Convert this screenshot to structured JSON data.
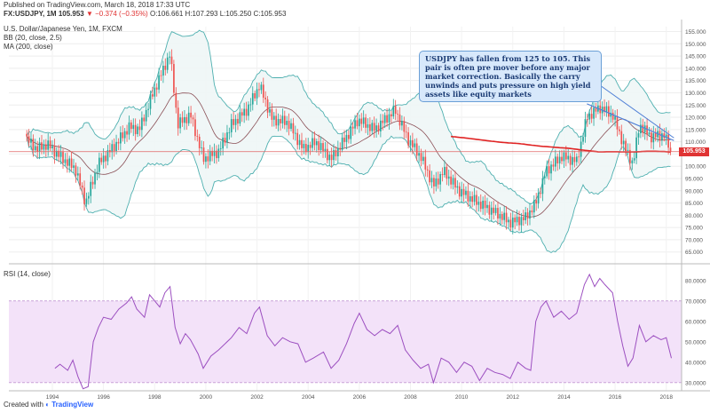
{
  "header": {
    "published": "Published on TradingView.com, March 18, 2018 17:33 UTC",
    "symbol": "FX:USDJPY, 1M",
    "last": "105.953",
    "change": "−0.374 (−0.35%)",
    "ohlc": "O:106.661 H:107.293 L:105.250 C:105.953"
  },
  "indicators": {
    "title": "U.S. Dollar/Japanese Yen, 1M, FXCM",
    "bb": "BB (20, close, 2.5)",
    "ma": "MA (200, close)",
    "rsi": "RSI (14, close)"
  },
  "annotation": "USDJPY has fallen from 125 to 105. This pair is often  pre mover before any major market correction. Basically the carry unwinds and puts pressure on high yield assets like equity markets",
  "price_badge": "105.953",
  "footer": {
    "created_with": "Created with",
    "brand": "TradingView"
  },
  "colors": {
    "up": "#26a69a",
    "down": "#ef5350",
    "bb": "#4fb0b0",
    "ma": "#e02424",
    "rsi": "#9c4fc0",
    "rsi_band": "#f3e2f9"
  },
  "chart_data": [
    {
      "type": "candlestick",
      "title": "U.S. Dollar/Japanese Yen, 1M, FXCM",
      "x_ticks": [
        "1994",
        "1996",
        "1998",
        "2000",
        "2002",
        "2004",
        "2006",
        "2008",
        "2010",
        "2012",
        "2014",
        "2016",
        "2018"
      ],
      "y_ticks": [
        "65.000",
        "70.000",
        "75.000",
        "80.000",
        "85.000",
        "90.000",
        "95.000",
        "100.000",
        "105.000",
        "110.000",
        "115.000",
        "120.000",
        "125.000",
        "130.000",
        "135.000",
        "140.000",
        "145.000",
        "150.000",
        "155.000"
      ],
      "ylim": [
        62,
        157
      ],
      "xlim": [
        1992.3,
        2018.6
      ],
      "close_anchors": [
        [
          1993.0,
          111
        ],
        [
          1993.4,
          107
        ],
        [
          1993.8,
          109
        ],
        [
          1994.3,
          104
        ],
        [
          1994.9,
          99
        ],
        [
          1995.3,
          85
        ],
        [
          1995.8,
          101
        ],
        [
          1996.4,
          108
        ],
        [
          1997.0,
          116
        ],
        [
          1997.4,
          115
        ],
        [
          1997.9,
          129
        ],
        [
          1998.6,
          146
        ],
        [
          1998.9,
          117
        ],
        [
          1999.4,
          121
        ],
        [
          1999.9,
          103
        ],
        [
          2000.5,
          106
        ],
        [
          2001.0,
          117
        ],
        [
          2001.6,
          123
        ],
        [
          2002.1,
          133
        ],
        [
          2002.6,
          119
        ],
        [
          2003.2,
          118
        ],
        [
          2003.8,
          107
        ],
        [
          2004.3,
          110
        ],
        [
          2004.9,
          103
        ],
        [
          2005.5,
          112
        ],
        [
          2005.95,
          119
        ],
        [
          2006.6,
          115
        ],
        [
          2007.4,
          123
        ],
        [
          2007.9,
          111
        ],
        [
          2008.4,
          104
        ],
        [
          2008.9,
          92
        ],
        [
          2009.3,
          98
        ],
        [
          2009.9,
          90
        ],
        [
          2010.5,
          86
        ],
        [
          2011.0,
          83
        ],
        [
          2011.5,
          80
        ],
        [
          2011.9,
          77
        ],
        [
          2012.5,
          79
        ],
        [
          2012.9,
          85
        ],
        [
          2013.3,
          98
        ],
        [
          2013.9,
          104
        ],
        [
          2014.5,
          102
        ],
        [
          2014.9,
          120
        ],
        [
          2015.4,
          124
        ],
        [
          2015.9,
          121
        ],
        [
          2016.4,
          107
        ],
        [
          2016.7,
          101
        ],
        [
          2016.95,
          117
        ],
        [
          2017.4,
          112
        ],
        [
          2017.9,
          113
        ],
        [
          2018.2,
          106
        ]
      ],
      "bollinger": {
        "period": 20,
        "stddev": 2.5
      },
      "moving_average": {
        "period": 200
      },
      "last_price": 105.953,
      "trendline": [
        [
          2014.9,
          125.5
        ],
        [
          2018.3,
          110.5
        ]
      ]
    },
    {
      "type": "line",
      "title": "RSI (14, close)",
      "y_ticks": [
        "30.0000",
        "40.0000",
        "50.0000",
        "60.0000",
        "70.0000",
        "80.0000"
      ],
      "ylim": [
        26,
        86
      ],
      "band": [
        30,
        70
      ],
      "points": [
        [
          1994.1,
          37
        ],
        [
          1994.3,
          39
        ],
        [
          1994.6,
          36
        ],
        [
          1994.8,
          41
        ],
        [
          1995.0,
          33
        ],
        [
          1995.2,
          27
        ],
        [
          1995.4,
          28
        ],
        [
          1995.6,
          50
        ],
        [
          1995.8,
          57
        ],
        [
          1996.0,
          62
        ],
        [
          1996.3,
          61
        ],
        [
          1996.6,
          66
        ],
        [
          1996.9,
          69
        ],
        [
          1997.1,
          72
        ],
        [
          1997.3,
          66
        ],
        [
          1997.6,
          62
        ],
        [
          1997.8,
          73
        ],
        [
          1998.0,
          70
        ],
        [
          1998.2,
          67
        ],
        [
          1998.4,
          74
        ],
        [
          1998.6,
          77
        ],
        [
          1998.8,
          57
        ],
        [
          1999.0,
          49
        ],
        [
          1999.2,
          54
        ],
        [
          1999.4,
          51
        ],
        [
          1999.7,
          44
        ],
        [
          1999.9,
          37
        ],
        [
          2000.2,
          43
        ],
        [
          2000.5,
          46
        ],
        [
          2001.0,
          52
        ],
        [
          2001.3,
          57
        ],
        [
          2001.6,
          54
        ],
        [
          2001.9,
          64
        ],
        [
          2002.1,
          67
        ],
        [
          2002.4,
          53
        ],
        [
          2002.7,
          48
        ],
        [
          2003.0,
          52
        ],
        [
          2003.3,
          50
        ],
        [
          2003.6,
          49
        ],
        [
          2003.9,
          40
        ],
        [
          2004.2,
          42
        ],
        [
          2004.6,
          45
        ],
        [
          2004.9,
          37
        ],
        [
          2005.2,
          41
        ],
        [
          2005.5,
          49
        ],
        [
          2005.8,
          59
        ],
        [
          2006.0,
          64
        ],
        [
          2006.3,
          56
        ],
        [
          2006.6,
          53
        ],
        [
          2006.9,
          56
        ],
        [
          2007.2,
          54
        ],
        [
          2007.5,
          58
        ],
        [
          2007.8,
          46
        ],
        [
          2008.1,
          41
        ],
        [
          2008.4,
          37
        ],
        [
          2008.7,
          39
        ],
        [
          2008.9,
          30
        ],
        [
          2009.2,
          42
        ],
        [
          2009.5,
          40
        ],
        [
          2009.8,
          35
        ],
        [
          2010.1,
          40
        ],
        [
          2010.4,
          38
        ],
        [
          2010.7,
          31
        ],
        [
          2011.0,
          37
        ],
        [
          2011.3,
          35
        ],
        [
          2011.6,
          34
        ],
        [
          2011.9,
          32
        ],
        [
          2012.2,
          40
        ],
        [
          2012.5,
          37
        ],
        [
          2012.7,
          36
        ],
        [
          2012.9,
          60
        ],
        [
          2013.1,
          67
        ],
        [
          2013.3,
          70
        ],
        [
          2013.6,
          62
        ],
        [
          2013.9,
          65
        ],
        [
          2014.2,
          61
        ],
        [
          2014.5,
          64
        ],
        [
          2014.8,
          78
        ],
        [
          2015.0,
          83
        ],
        [
          2015.2,
          77
        ],
        [
          2015.4,
          81
        ],
        [
          2015.6,
          78
        ],
        [
          2015.9,
          74
        ],
        [
          2016.1,
          60
        ],
        [
          2016.3,
          48
        ],
        [
          2016.5,
          38
        ],
        [
          2016.7,
          42
        ],
        [
          2016.95,
          58
        ],
        [
          2017.2,
          50
        ],
        [
          2017.5,
          53
        ],
        [
          2017.8,
          51
        ],
        [
          2018.0,
          52
        ],
        [
          2018.2,
          42
        ]
      ]
    }
  ]
}
